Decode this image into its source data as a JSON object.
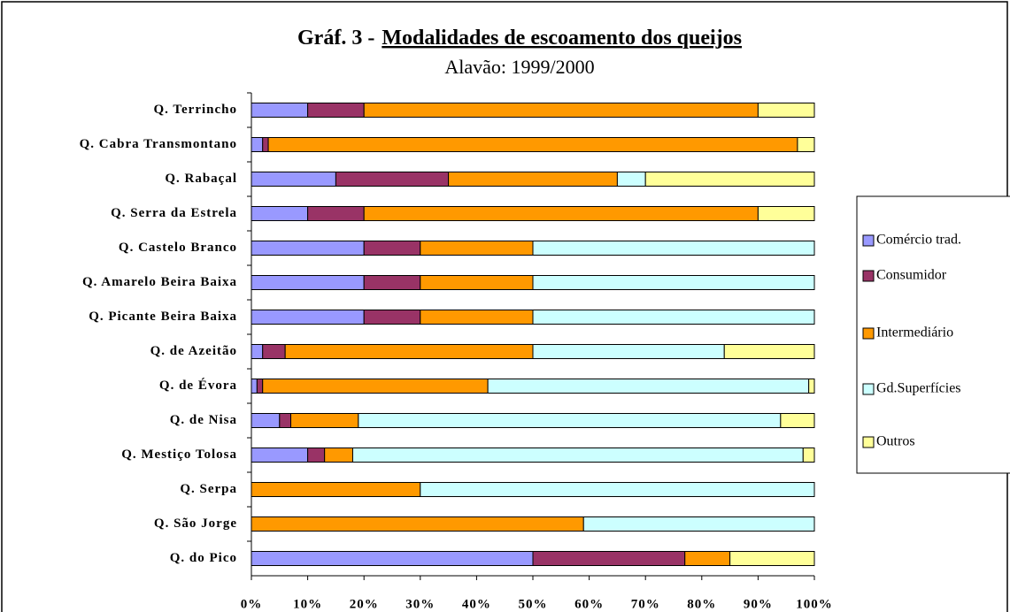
{
  "chart_data": {
    "type": "bar",
    "orientation": "horizontal",
    "stacked": true,
    "title": [
      "Gráf. 3 -",
      "Modalidades de escoamento dos queijos"
    ],
    "subtitle": "Alavão: 1999/2000",
    "categories": [
      "Q. Terrincho",
      "Q. Cabra Transmontano",
      "Q. Rabaçal",
      "Q. Serra da Estrela",
      "Q. Castelo Branco",
      "Q. Amarelo Beira Baixa",
      "Q. Picante Beira Baixa",
      "Q. de Azeitão",
      "Q. de Évora",
      "Q. de Nisa",
      "Q. Mestiço Tolosa",
      "Q. Serpa",
      "Q. São Jorge",
      "Q. do Pico"
    ],
    "series": [
      {
        "name": "Comércio trad.",
        "color": "#9999ff",
        "values": [
          10,
          2,
          15,
          10,
          20,
          20,
          20,
          2,
          1,
          5,
          10,
          0,
          0,
          50
        ]
      },
      {
        "name": "Consumidor",
        "color": "#993366",
        "values": [
          10,
          1,
          20,
          10,
          10,
          10,
          10,
          4,
          1,
          2,
          3,
          0,
          0,
          27
        ]
      },
      {
        "name": "Intermediário",
        "color": "#ff9900",
        "values": [
          70,
          94,
          30,
          70,
          20,
          20,
          20,
          44,
          40,
          12,
          5,
          30,
          59,
          8
        ]
      },
      {
        "name": "Gd.Superfícies",
        "color": "#ccffff",
        "values": [
          0,
          0,
          5,
          0,
          50,
          50,
          50,
          34,
          57,
          75,
          80,
          70,
          41,
          0
        ]
      },
      {
        "name": "Outros",
        "color": "#ffff99",
        "values": [
          10,
          3,
          30,
          10,
          0,
          0,
          0,
          16,
          1,
          6,
          2,
          0,
          0,
          15
        ]
      }
    ],
    "xlim": [
      0,
      100
    ],
    "xticks": [
      {
        "value": 0,
        "label": "0%"
      },
      {
        "value": 10,
        "label": "10%"
      },
      {
        "value": 20,
        "label": "20%"
      },
      {
        "value": 30,
        "label": "30%"
      },
      {
        "value": 40,
        "label": "40%"
      },
      {
        "value": 50,
        "label": "50%"
      },
      {
        "value": 60,
        "label": "60%"
      },
      {
        "value": 70,
        "label": "70%"
      },
      {
        "value": 80,
        "label": "80%"
      },
      {
        "value": 90,
        "label": "90%"
      },
      {
        "value": 100,
        "label": "100%"
      }
    ],
    "legend": "right"
  }
}
